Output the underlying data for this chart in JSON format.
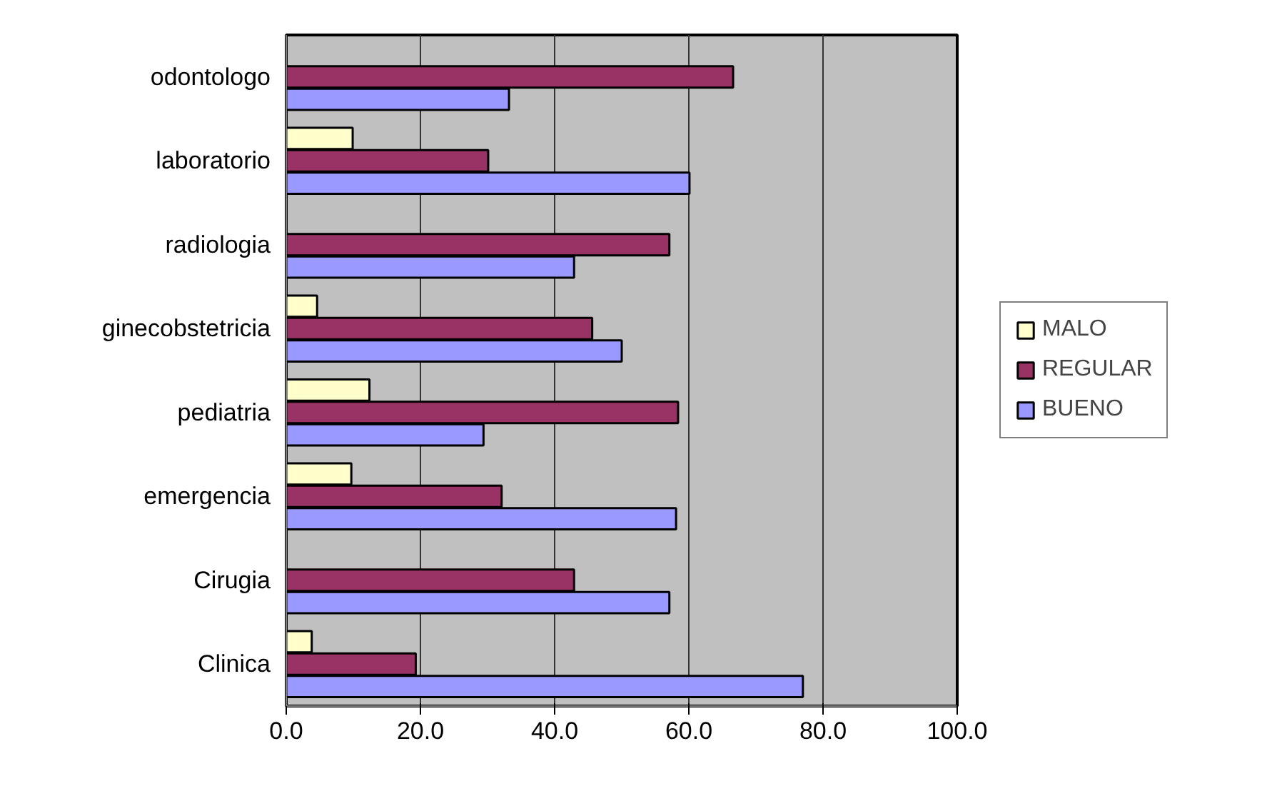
{
  "chart_data": {
    "type": "bar",
    "orientation": "horizontal",
    "categories": [
      "odontologo",
      "laboratorio",
      "radiologia",
      "ginecobstetricia",
      "pediatria",
      "emergencia",
      "Cirugia",
      "Clinica"
    ],
    "series": [
      {
        "name": "MALO",
        "color": "#ffffcc",
        "values": [
          null,
          9.9,
          null,
          4.6,
          12.4,
          9.7,
          null,
          3.8
        ]
      },
      {
        "name": "REGULAR",
        "color": "#993366",
        "values": [
          66.6,
          30.1,
          57.1,
          45.6,
          58.4,
          32.1,
          42.9,
          19.3
        ]
      },
      {
        "name": "BUENO",
        "color": "#9999ff",
        "values": [
          33.2,
          60.1,
          42.9,
          50.0,
          29.4,
          58.1,
          57.1,
          77.0
        ]
      }
    ],
    "xlim": [
      0,
      100
    ],
    "xticks": [
      {
        "value": 0,
        "label": "0.0"
      },
      {
        "value": 20,
        "label": "20.0"
      },
      {
        "value": 40,
        "label": "40.0"
      },
      {
        "value": 60,
        "label": "60.0"
      },
      {
        "value": 80,
        "label": "80.0"
      },
      {
        "value": 100,
        "label": "100.0"
      }
    ],
    "grid": "x",
    "legend": "right"
  }
}
